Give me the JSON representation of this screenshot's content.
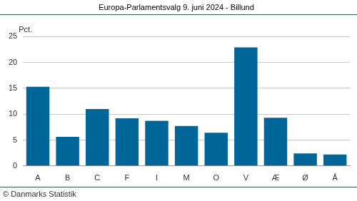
{
  "chart_data": {
    "type": "bar",
    "title": "Europa-Parlamentsvalg 9. juni 2024 - Billund",
    "ylabel": "Pct.",
    "annotations": [
      "© Danmarks Statistik"
    ],
    "categories": [
      "A",
      "B",
      "C",
      "F",
      "I",
      "M",
      "O",
      "V",
      "Æ",
      "Ø",
      "Å"
    ],
    "values": [
      15.3,
      5.6,
      11.0,
      9.2,
      8.7,
      7.7,
      6.4,
      22.9,
      9.3,
      2.4,
      2.2
    ],
    "color": "#006699",
    "ylim": [
      0,
      25
    ],
    "yticks": [
      0,
      5,
      10,
      15,
      20,
      25
    ],
    "grid": true
  }
}
